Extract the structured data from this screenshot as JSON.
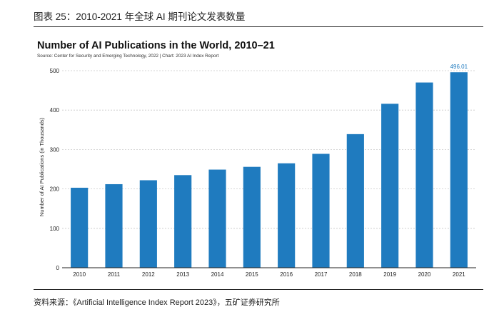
{
  "figure_caption": "图表 25：2010-2021 年全球 AI 期刊论文发表数量",
  "source_note": "资料来源：《Artificial Intelligence Index Report 2023》，五矿证券研究所",
  "colors": {
    "bar": "#1f7bbf",
    "label": "#1f7bbf",
    "grid": "#c8c8c8",
    "axis": "#222222"
  },
  "chart_data": {
    "type": "bar",
    "title": "Number of AI Publications in the World, 2010–21",
    "subtitle": "Source: Center for Security and Emerging Technology, 2022 | Chart: 2023 AI Index Report",
    "xlabel": "",
    "ylabel": "Number of AI Publications (in Thousands)",
    "categories": [
      "2010",
      "2011",
      "2012",
      "2013",
      "2014",
      "2015",
      "2016",
      "2017",
      "2018",
      "2019",
      "2020",
      "2021"
    ],
    "values": [
      203,
      212,
      222,
      235,
      249,
      256,
      265,
      289,
      339,
      416,
      470,
      496.01
    ],
    "data_labels": [
      null,
      null,
      null,
      null,
      null,
      null,
      null,
      null,
      null,
      null,
      null,
      "496.01"
    ],
    "ylim": [
      0,
      500
    ],
    "yticks": [
      0,
      100,
      200,
      300,
      400,
      500
    ],
    "grid": "horizontal dashed",
    "legend": "none"
  }
}
